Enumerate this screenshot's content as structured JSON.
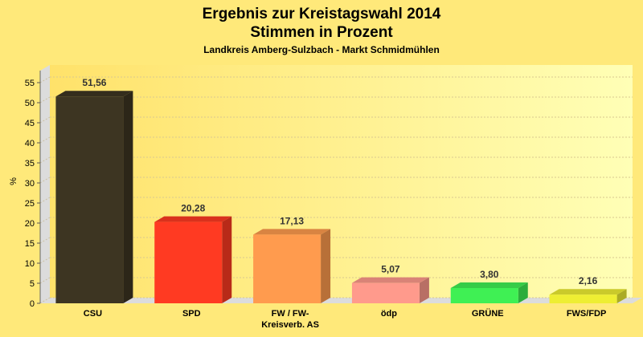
{
  "chart_data": {
    "type": "bar",
    "title": "Ergebnis zur Kreistagswahl 2014",
    "subtitle": "Stimmen in Prozent",
    "subsubtitle": "Landkreis Amberg-Sulzbach - Markt Schmidmühlen",
    "ylabel": "%",
    "xlabel": "",
    "ylim": [
      0,
      58
    ],
    "yticks": [
      0,
      5,
      10,
      15,
      20,
      25,
      30,
      35,
      40,
      45,
      50,
      55
    ],
    "grid": true,
    "categories": [
      "CSU",
      "SPD",
      "FW / FW-\nKreisverb. AS",
      "ödp",
      "GRÜNE",
      "FWS/FDP"
    ],
    "values": [
      51.56,
      20.28,
      17.13,
      5.07,
      3.8,
      2.16
    ],
    "value_labels": [
      "51,56",
      "20,28",
      "17,13",
      "5,07",
      "3,80",
      "2,16"
    ],
    "colors": [
      "#3d3522",
      "#ff3a22",
      "#ff9b4e",
      "#ff9a8c",
      "#3ff054",
      "#eeee33"
    ]
  }
}
